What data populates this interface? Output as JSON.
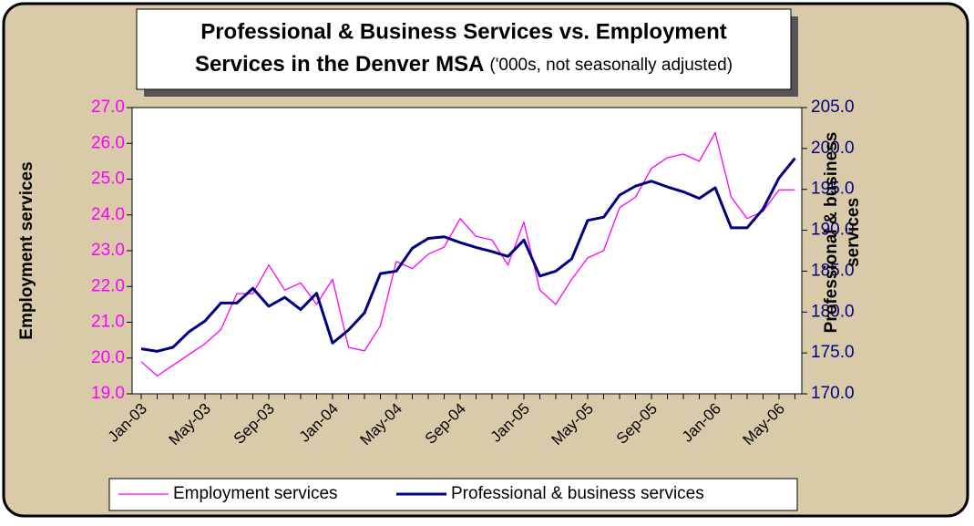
{
  "chart_data": {
    "type": "line",
    "title": [
      "Professional & Business Services vs. Employment",
      "Services in the Denver MSA"
    ],
    "subtitle": "('000s, not seasonally adjusted)",
    "y_label": "Employment services",
    "y2_label": "Professional & business services",
    "categories": [
      "Jan-03",
      null,
      null,
      null,
      "May-03",
      null,
      null,
      null,
      "Sep-03",
      null,
      null,
      null,
      "Jan-04",
      null,
      null,
      null,
      "May-04",
      null,
      null,
      null,
      "Sep-04",
      null,
      null,
      null,
      "Jan-05",
      null,
      null,
      null,
      "May-05",
      null,
      null,
      null,
      "Sep-05",
      null,
      null,
      null,
      "Jan-06",
      null,
      null,
      null,
      "May-06",
      null
    ],
    "series": [
      {
        "name": "Employment services",
        "color": "#ff00ff",
        "axis": "y",
        "values": [
          19.9,
          19.5,
          19.8,
          20.1,
          20.4,
          20.8,
          21.8,
          21.8,
          22.6,
          21.9,
          22.1,
          21.5,
          22.2,
          20.3,
          20.2,
          20.9,
          22.7,
          22.5,
          22.9,
          23.1,
          23.9,
          23.4,
          23.3,
          22.6,
          23.8,
          21.9,
          21.5,
          22.2,
          22.8,
          23.0,
          24.2,
          24.5,
          25.3,
          25.6,
          25.7,
          25.5,
          26.3,
          24.5,
          23.9,
          24.1,
          24.7,
          24.7
        ]
      },
      {
        "name": "Professional & business services",
        "color": "#000080",
        "axis": "y2",
        "values": [
          175.5,
          175.2,
          175.7,
          177.6,
          178.9,
          181.1,
          181.1,
          182.9,
          180.7,
          181.8,
          180.3,
          182.3,
          176.2,
          177.8,
          179.9,
          184.7,
          185.0,
          187.8,
          189.0,
          189.2,
          188.5,
          187.9,
          187.4,
          186.8,
          188.8,
          184.4,
          185.0,
          186.5,
          191.2,
          191.6,
          194.3,
          195.4,
          196.0,
          195.3,
          194.7,
          193.9,
          195.2,
          190.3,
          190.3,
          192.6,
          196.4,
          198.8
        ]
      }
    ],
    "ylim": [
      19,
      27
    ],
    "yticks": [
      {
        "value": 19,
        "label": "19.0"
      },
      {
        "value": 20,
        "label": "20.0"
      },
      {
        "value": 21,
        "label": "21.0"
      },
      {
        "value": 22,
        "label": "22.0"
      },
      {
        "value": 23,
        "label": "23.0"
      },
      {
        "value": 24,
        "label": "24.0"
      },
      {
        "value": 25,
        "label": "25.0"
      },
      {
        "value": 26,
        "label": "26.0"
      },
      {
        "value": 27,
        "label": "27.0"
      }
    ],
    "y2lim": [
      170,
      205
    ],
    "y2ticks": [
      {
        "value": 170,
        "label": "170.0"
      },
      {
        "value": 175,
        "label": "175.0"
      },
      {
        "value": 180,
        "label": "180.0"
      },
      {
        "value": 185,
        "label": "185.0"
      },
      {
        "value": 190,
        "label": "190.0"
      },
      {
        "value": 195,
        "label": "195.0"
      },
      {
        "value": 200,
        "label": "200.0"
      },
      {
        "value": 205,
        "label": "205.0"
      }
    ],
    "legend": "bottom"
  }
}
